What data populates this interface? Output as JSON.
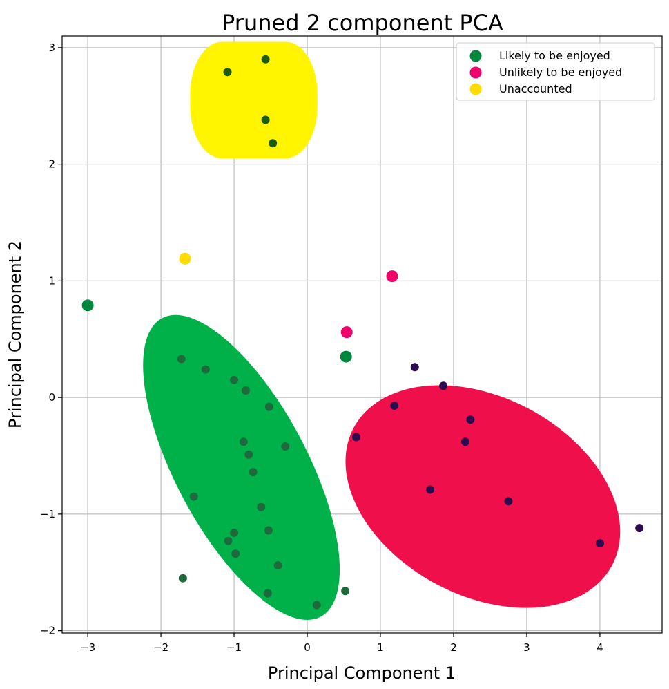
{
  "chart_data": {
    "type": "scatter",
    "title": "Pruned 2 component PCA",
    "xlabel": "Principal Component 1",
    "ylabel": "Principal Component 2",
    "xlim": [
      -3.35,
      4.85
    ],
    "ylim": [
      -2.02,
      3.1
    ],
    "xticks": [
      -3,
      -2,
      -1,
      0,
      1,
      2,
      3,
      4
    ],
    "yticks": [
      -2,
      -1,
      0,
      1,
      2,
      3
    ],
    "xtick_labels": [
      "−3",
      "−2",
      "−1",
      "0",
      "1",
      "2",
      "3",
      "4"
    ],
    "ytick_labels": [
      "−2",
      "−1",
      "0",
      "1",
      "2",
      "3"
    ],
    "grid": true,
    "legend": {
      "placement": "top-right",
      "entries": [
        {
          "label": "Likely to be enjoyed",
          "color": "#00873e"
        },
        {
          "label": "Unlikely to be enjoyed",
          "color": "#f0006b"
        },
        {
          "label": "Unaccounted",
          "color": "#ffdd00"
        }
      ]
    },
    "regions": [
      {
        "color": "#00b14a",
        "cx": -0.9,
        "cy": -0.6,
        "rx": 0.9,
        "ry": 1.45,
        "angle_deg": 28
      },
      {
        "color": "#ee0f4b",
        "cx": 2.4,
        "cy": -0.85,
        "rx": 2.0,
        "ry": 0.85,
        "angle_deg": -28
      },
      {
        "color": "#fff500",
        "cx": -0.73,
        "cy": 2.55,
        "rx": 0.87,
        "ry": 0.5,
        "angle_deg": 0,
        "shape": "rounded-rect"
      }
    ],
    "series": [
      {
        "name": "Likely to be enjoyed",
        "color": "#00873e",
        "points": [
          [
            -3.0,
            0.79
          ],
          [
            0.53,
            0.35
          ]
        ]
      },
      {
        "name": "Unlikely to be enjoyed",
        "color": "#f0006b",
        "points": [
          [
            0.54,
            0.56
          ],
          [
            1.16,
            1.04
          ]
        ]
      },
      {
        "name": "Unaccounted",
        "color": "#ffdd00",
        "points": [
          [
            -1.67,
            1.19
          ]
        ]
      },
      {
        "color": "#1e6a3c",
        "points": [
          [
            -1.72,
            0.33
          ],
          [
            -1.39,
            0.24
          ],
          [
            -1.0,
            0.15
          ],
          [
            -0.84,
            0.06
          ],
          [
            -0.52,
            -0.08
          ],
          [
            -0.87,
            -0.38
          ],
          [
            -0.8,
            -0.49
          ],
          [
            -0.3,
            -0.42
          ],
          [
            -0.74,
            -0.64
          ],
          [
            -1.55,
            -0.85
          ],
          [
            -0.63,
            -0.94
          ],
          [
            -1.0,
            -1.16
          ],
          [
            -0.53,
            -1.14
          ],
          [
            -1.08,
            -1.23
          ],
          [
            -0.98,
            -1.34
          ],
          [
            -0.4,
            -1.44
          ],
          [
            -1.7,
            -1.55
          ],
          [
            -0.54,
            -1.68
          ],
          [
            0.13,
            -1.78
          ],
          [
            0.52,
            -1.66
          ]
        ]
      },
      {
        "color": "#2b0a4e",
        "points": [
          [
            1.47,
            0.26
          ],
          [
            1.86,
            0.1
          ],
          [
            1.19,
            -0.07
          ],
          [
            2.23,
            -0.19
          ],
          [
            0.67,
            -0.34
          ],
          [
            2.16,
            -0.38
          ],
          [
            1.68,
            -0.79
          ],
          [
            2.75,
            -0.89
          ],
          [
            4.54,
            -1.12
          ],
          [
            4.0,
            -1.25
          ]
        ]
      },
      {
        "color": "#1c5c0c",
        "points": [
          [
            -0.57,
            2.9
          ],
          [
            -1.09,
            2.79
          ],
          [
            -0.57,
            2.38
          ],
          [
            -0.47,
            2.18
          ]
        ]
      }
    ]
  }
}
